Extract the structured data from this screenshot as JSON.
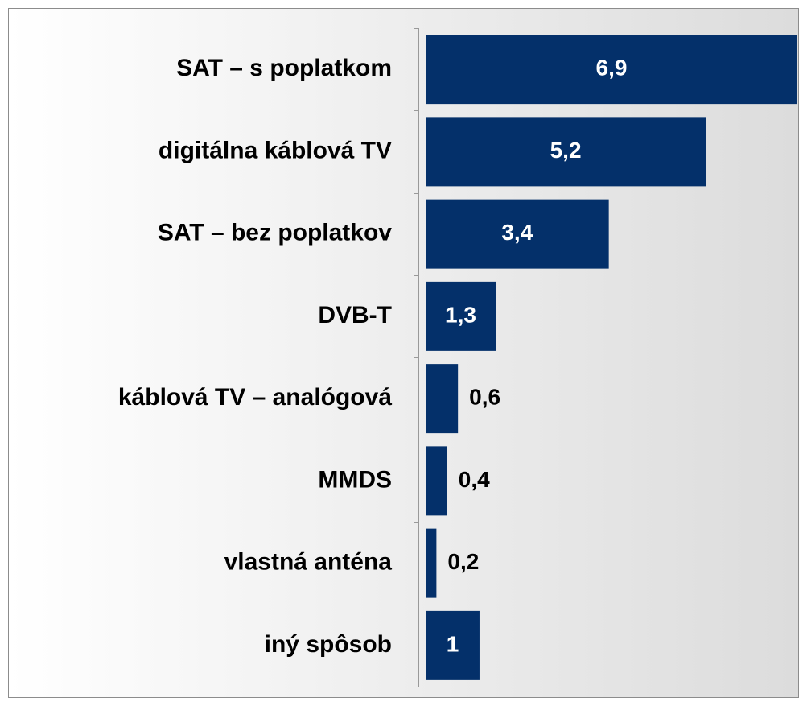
{
  "chart_data": {
    "type": "hbar",
    "categories": [
      "SAT – s poplatkom",
      "digitálna káblová TV",
      "SAT – bez poplatkov",
      "DVB-T",
      "káblová TV – analógová",
      "MMDS",
      "vlastná anténa",
      "iný spôsob"
    ],
    "values": [
      6.9,
      5.2,
      3.4,
      1.3,
      0.6,
      0.4,
      0.2,
      1
    ],
    "value_labels": [
      "6,9",
      "5,2",
      "3,4",
      "1,3",
      "0,6",
      "0,4",
      "0,2",
      "1"
    ],
    "color": "#04306a"
  }
}
